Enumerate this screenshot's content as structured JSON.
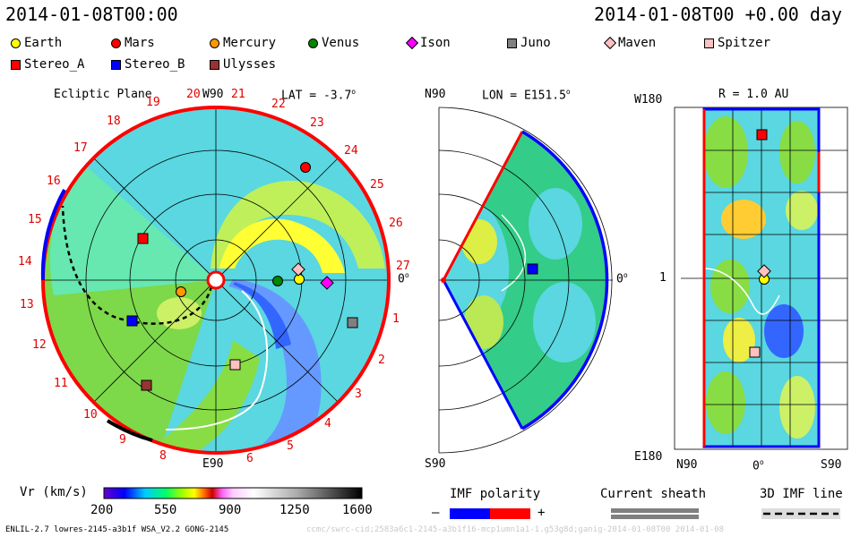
{
  "header": {
    "left_time": "2014-01-08T00:00",
    "right_time": "2014-01-08T00 +0.00 day"
  },
  "legend": [
    {
      "name": "Earth",
      "shape": "circle",
      "color": "#ffff00"
    },
    {
      "name": "Mars",
      "shape": "circle",
      "color": "#ff0000"
    },
    {
      "name": "Mercury",
      "shape": "circle",
      "color": "#ff9900"
    },
    {
      "name": "Venus",
      "shape": "circle",
      "color": "#008800"
    },
    {
      "name": "Ison",
      "shape": "diamond",
      "color": "#ff00ff"
    },
    {
      "name": "Juno",
      "shape": "square",
      "color": "#808080"
    },
    {
      "name": "Maven",
      "shape": "diamond",
      "color": "#ffc0c0"
    },
    {
      "name": "Spitzer",
      "shape": "square",
      "color": "#ffc0c0"
    },
    {
      "name": "Stereo_A",
      "shape": "square",
      "color": "#ff0000"
    },
    {
      "name": "Stereo_B",
      "shape": "square",
      "color": "#0000ff"
    },
    {
      "name": "Ulysses",
      "shape": "square",
      "color": "#993333"
    }
  ],
  "ecliptic": {
    "title": "Ecliptic Plane",
    "lat": "LAT = -3.7",
    "lat_deg": "o",
    "top": "W90",
    "bottom": "E90",
    "right": "0",
    "right_deg": "o",
    "carrington": [
      "6",
      "5",
      "4",
      "3",
      "2",
      "1",
      "27",
      "26",
      "25",
      "24",
      "23",
      "22",
      "21",
      "20",
      "19",
      "18",
      "17",
      "16",
      "15",
      "14",
      "13",
      "12",
      "11",
      "10",
      "9",
      "8"
    ]
  },
  "meridional": {
    "title": "LON = E151.5",
    "title_deg": "o",
    "top": "N90",
    "bottom": "S90",
    "right": "0",
    "right_deg": "o"
  },
  "shell": {
    "title": "R = 1.0 AU",
    "top_left": "W180",
    "mid_left": "1",
    "bottom_left": "E180",
    "bottom_n": "N90",
    "bottom_0": "0",
    "bottom_0_deg": "o",
    "bottom_s": "S90"
  },
  "colorbar": {
    "label": "Vr (km/s)",
    "ticks": [
      "200",
      "550",
      "900",
      "1250",
      "1600"
    ]
  },
  "imf": {
    "label": "IMF polarity",
    "minus": "–",
    "plus": "+",
    "colors": [
      "#0000ff",
      "#ff0000"
    ]
  },
  "sheath": {
    "label": "Current sheath"
  },
  "imf3d": {
    "label": "3D IMF line"
  },
  "footer": {
    "left": "ENLIL-2.7 lowres-2145-a3b1f WSA_V2.2 GONG-2145",
    "right": "ccmc/swrc-cid;2583a6c1-2145-a3b1f16-mcp1umn1a1-1.g53g8d;ganig-2014-01-08T00   2014-01-08"
  }
}
